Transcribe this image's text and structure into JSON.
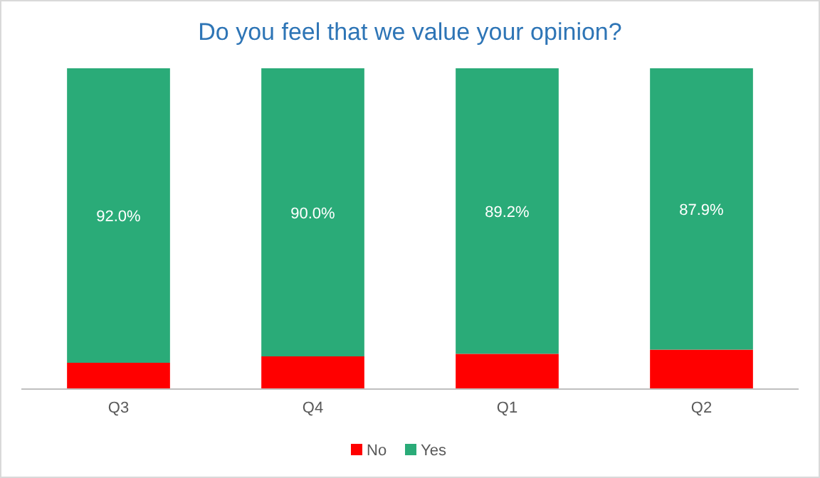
{
  "chart_data": {
    "type": "bar",
    "title": "Do you feel that we value your opinion?",
    "categories": [
      "Q3",
      "Q4",
      "Q1",
      "Q2"
    ],
    "stacked": true,
    "ylim": [
      0,
      100
    ],
    "legend": "bottom",
    "grid": false,
    "series": [
      {
        "name": "No",
        "color": "#ff0000",
        "values": [
          8.0,
          10.0,
          10.8,
          12.1
        ]
      },
      {
        "name": "Yes",
        "color": "#2aab78",
        "values": [
          92.0,
          90.0,
          89.2,
          87.9
        ],
        "value_labels": [
          "92.0%",
          "90.0%",
          "89.2%",
          "87.9%"
        ]
      }
    ]
  }
}
